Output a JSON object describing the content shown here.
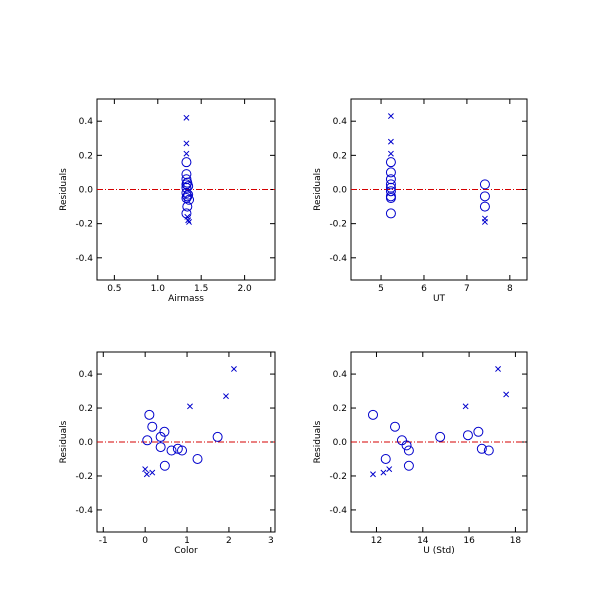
{
  "colors": {
    "points": "#0000cc",
    "reference_line": "#d40000",
    "axes": "#000000"
  },
  "chart_data": [
    {
      "type": "scatter",
      "title": "",
      "xlabel": "Airmass",
      "ylabel": "Residuals",
      "xlim": [
        0.3,
        2.35
      ],
      "ylim": [
        -0.53,
        0.53
      ],
      "xticks": [
        0.5,
        1.0,
        1.5,
        2.0
      ],
      "xtick_labels": [
        "0.5",
        "1.0",
        "1.5",
        "2.0"
      ],
      "yticks": [
        -0.4,
        -0.2,
        0.0,
        0.2,
        0.4
      ],
      "ytick_labels": [
        "-0.4",
        "-0.2",
        "0.0",
        "0.2",
        "0.4"
      ],
      "reference_y": 0.0,
      "grid": false,
      "series": [
        {
          "marker": "circle",
          "points": [
            [
              1.33,
              0.16
            ],
            [
              1.33,
              0.09
            ],
            [
              1.33,
              0.06
            ],
            [
              1.34,
              0.04
            ],
            [
              1.33,
              0.03
            ],
            [
              1.35,
              0.02
            ],
            [
              1.33,
              0.01
            ],
            [
              1.33,
              -0.02
            ],
            [
              1.35,
              -0.03
            ],
            [
              1.34,
              -0.04
            ],
            [
              1.33,
              -0.05
            ],
            [
              1.36,
              -0.06
            ],
            [
              1.34,
              -0.1
            ],
            [
              1.33,
              -0.14
            ]
          ]
        },
        {
          "marker": "cross",
          "points": [
            [
              1.33,
              0.42
            ],
            [
              1.33,
              0.27
            ],
            [
              1.33,
              0.21
            ],
            [
              1.34,
              -0.16
            ],
            [
              1.35,
              -0.18
            ],
            [
              1.36,
              -0.19
            ]
          ]
        }
      ]
    },
    {
      "type": "scatter",
      "title": "",
      "xlabel": "UT",
      "ylabel": "Residuals",
      "xlim": [
        4.3,
        8.4
      ],
      "ylim": [
        -0.53,
        0.53
      ],
      "xticks": [
        5,
        6,
        7,
        8
      ],
      "xtick_labels": [
        "5",
        "6",
        "7",
        "8"
      ],
      "yticks": [
        -0.4,
        -0.2,
        0.0,
        0.2,
        0.4
      ],
      "ytick_labels": [
        "-0.4",
        "-0.2",
        "0.0",
        "0.2",
        "0.4"
      ],
      "reference_y": 0.0,
      "grid": false,
      "series": [
        {
          "marker": "circle",
          "points": [
            [
              5.23,
              0.16
            ],
            [
              5.23,
              0.1
            ],
            [
              5.23,
              0.06
            ],
            [
              5.23,
              0.03
            ],
            [
              5.23,
              0.01
            ],
            [
              5.23,
              -0.01
            ],
            [
              5.23,
              -0.04
            ],
            [
              5.23,
              -0.05
            ],
            [
              5.23,
              -0.14
            ],
            [
              7.42,
              0.03
            ],
            [
              7.42,
              -0.04
            ],
            [
              7.42,
              -0.1
            ]
          ]
        },
        {
          "marker": "cross",
          "points": [
            [
              5.23,
              0.43
            ],
            [
              5.23,
              0.28
            ],
            [
              5.23,
              0.21
            ],
            [
              7.42,
              -0.17
            ],
            [
              7.42,
              -0.19
            ]
          ]
        }
      ]
    },
    {
      "type": "scatter",
      "title": "",
      "xlabel": "Color",
      "ylabel": "Residuals",
      "xlim": [
        -1.15,
        3.1
      ],
      "ylim": [
        -0.53,
        0.53
      ],
      "xticks": [
        -1,
        0,
        1,
        2,
        3
      ],
      "xtick_labels": [
        "-1",
        "0",
        "1",
        "2",
        "3"
      ],
      "yticks": [
        -0.4,
        -0.2,
        0.0,
        0.2,
        0.4
      ],
      "ytick_labels": [
        "-0.4",
        "-0.2",
        "0.0",
        "0.2",
        "0.4"
      ],
      "reference_y": 0.0,
      "grid": false,
      "series": [
        {
          "marker": "circle",
          "points": [
            [
              0.1,
              0.16
            ],
            [
              0.17,
              0.09
            ],
            [
              0.46,
              0.06
            ],
            [
              0.05,
              0.01
            ],
            [
              0.37,
              0.03
            ],
            [
              0.37,
              -0.03
            ],
            [
              0.63,
              -0.05
            ],
            [
              0.78,
              -0.04
            ],
            [
              0.88,
              -0.05
            ],
            [
              1.25,
              -0.1
            ],
            [
              1.73,
              0.03
            ],
            [
              0.47,
              -0.14
            ]
          ]
        },
        {
          "marker": "cross",
          "points": [
            [
              2.12,
              0.43
            ],
            [
              1.93,
              0.27
            ],
            [
              1.07,
              0.21
            ],
            [
              0.0,
              -0.16
            ],
            [
              0.04,
              -0.19
            ],
            [
              0.17,
              -0.18
            ]
          ]
        }
      ]
    },
    {
      "type": "scatter",
      "title": "",
      "xlabel": "U (Std)",
      "ylabel": "Residuals",
      "xlim": [
        10.9,
        18.5
      ],
      "ylim": [
        -0.53,
        0.53
      ],
      "xticks": [
        12,
        14,
        16,
        18
      ],
      "xtick_labels": [
        "12",
        "14",
        "16",
        "18"
      ],
      "yticks": [
        -0.4,
        -0.2,
        0.0,
        0.2,
        0.4
      ],
      "ytick_labels": [
        "-0.4",
        "-0.2",
        "0.0",
        "0.2",
        "0.4"
      ],
      "reference_y": 0.0,
      "grid": false,
      "series": [
        {
          "marker": "circle",
          "points": [
            [
              11.85,
              0.16
            ],
            [
              12.8,
              0.09
            ],
            [
              13.1,
              0.01
            ],
            [
              13.3,
              -0.02
            ],
            [
              13.4,
              -0.05
            ],
            [
              13.4,
              -0.14
            ],
            [
              12.4,
              -0.1
            ],
            [
              14.75,
              0.03
            ],
            [
              15.95,
              0.04
            ],
            [
              16.4,
              0.06
            ],
            [
              16.55,
              -0.04
            ],
            [
              16.85,
              -0.05
            ]
          ]
        },
        {
          "marker": "cross",
          "points": [
            [
              17.25,
              0.43
            ],
            [
              17.6,
              0.28
            ],
            [
              15.85,
              0.21
            ],
            [
              11.85,
              -0.19
            ],
            [
              12.3,
              -0.18
            ],
            [
              12.55,
              -0.16
            ]
          ]
        }
      ]
    }
  ]
}
